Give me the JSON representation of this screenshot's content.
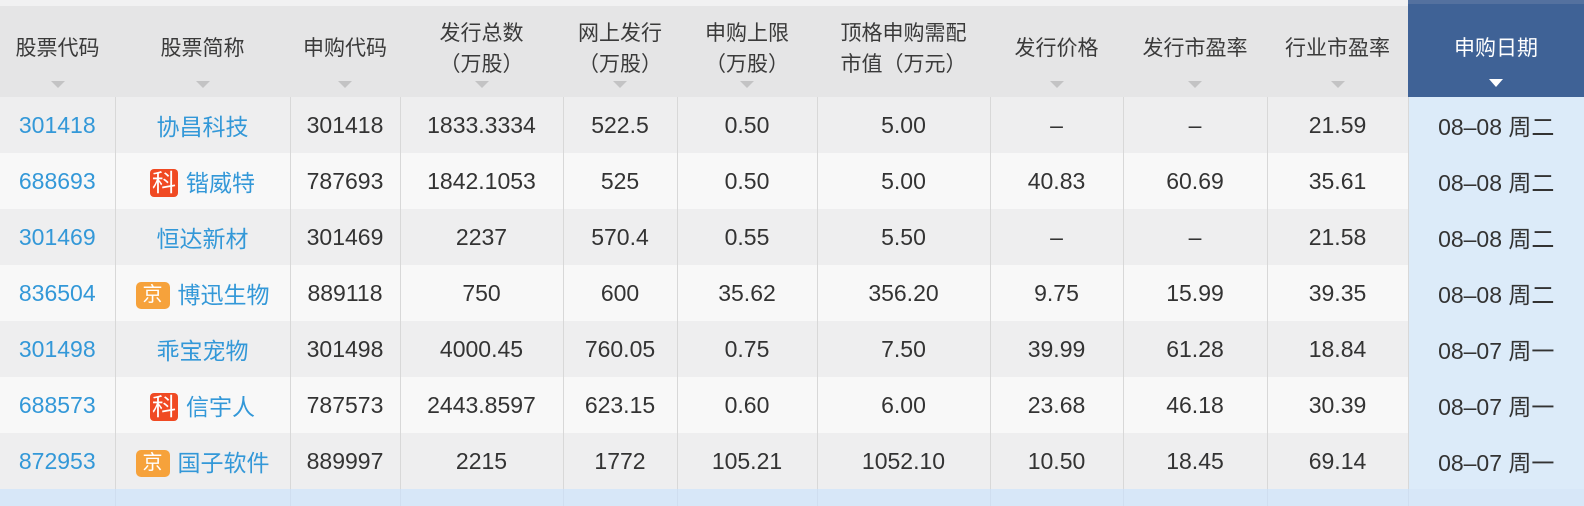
{
  "colors": {
    "link_blue": "#3398d8",
    "header_gray": "#e5e5e6",
    "active_header_blue": "#3f6296",
    "date_column_blue": "#dcebf9",
    "row_odd": "#eeeeef",
    "row_even": "#f8f8f8",
    "partial_row_blue": "#d7e7f8",
    "badge_sci_red": "#f04a23",
    "badge_bj_orange": "#f6a23b"
  },
  "table": {
    "columns": [
      {
        "id": "code",
        "label": "股票代码",
        "label2": "",
        "sortable": true,
        "active": false
      },
      {
        "id": "name",
        "label": "股票简称",
        "label2": "",
        "sortable": true,
        "active": false
      },
      {
        "id": "sub-code",
        "label": "申购代码",
        "label2": "",
        "sortable": true,
        "active": false
      },
      {
        "id": "total-issue",
        "label": "发行总数",
        "label2": "（万股）",
        "sortable": true,
        "active": false
      },
      {
        "id": "online-issue",
        "label": "网上发行",
        "label2": "（万股）",
        "sortable": true,
        "active": false
      },
      {
        "id": "sub-limit",
        "label": "申购上限",
        "label2": "（万股）",
        "sortable": true,
        "active": false
      },
      {
        "id": "max-mktval",
        "label": "顶格申购需配",
        "label2": "市值（万元）",
        "sortable": false,
        "active": false
      },
      {
        "id": "issue-price",
        "label": "发行价格",
        "label2": "",
        "sortable": true,
        "active": false
      },
      {
        "id": "issue-pe",
        "label": "发行市盈率",
        "label2": "",
        "sortable": true,
        "active": false
      },
      {
        "id": "industry-pe",
        "label": "行业市盈率",
        "label2": "",
        "sortable": true,
        "active": false
      },
      {
        "id": "sub-date",
        "label": "申购日期",
        "label2": "",
        "sortable": true,
        "active": true
      }
    ],
    "rows": [
      {
        "code": "301418",
        "badge": "",
        "name": "协昌科技",
        "sub_code": "301418",
        "total_issue": "1833.3334",
        "online_issue": "522.5",
        "sub_limit": "0.50",
        "max_mktval": "5.00",
        "issue_price": "–",
        "issue_pe": "–",
        "industry_pe": "21.59",
        "sub_date": "08–08 周二"
      },
      {
        "code": "688693",
        "badge": "科",
        "name": "锴威特",
        "sub_code": "787693",
        "total_issue": "1842.1053",
        "online_issue": "525",
        "sub_limit": "0.50",
        "max_mktval": "5.00",
        "issue_price": "40.83",
        "issue_pe": "60.69",
        "industry_pe": "35.61",
        "sub_date": "08–08 周二"
      },
      {
        "code": "301469",
        "badge": "",
        "name": "恒达新材",
        "sub_code": "301469",
        "total_issue": "2237",
        "online_issue": "570.4",
        "sub_limit": "0.55",
        "max_mktval": "5.50",
        "issue_price": "–",
        "issue_pe": "–",
        "industry_pe": "21.58",
        "sub_date": "08–08 周二"
      },
      {
        "code": "836504",
        "badge": "京",
        "name": "博迅生物",
        "sub_code": "889118",
        "total_issue": "750",
        "online_issue": "600",
        "sub_limit": "35.62",
        "max_mktval": "356.20",
        "issue_price": "9.75",
        "issue_pe": "15.99",
        "industry_pe": "39.35",
        "sub_date": "08–08 周二"
      },
      {
        "code": "301498",
        "badge": "",
        "name": "乖宝宠物",
        "sub_code": "301498",
        "total_issue": "4000.45",
        "online_issue": "760.05",
        "sub_limit": "0.75",
        "max_mktval": "7.50",
        "issue_price": "39.99",
        "issue_pe": "61.28",
        "industry_pe": "18.84",
        "sub_date": "08–07 周一"
      },
      {
        "code": "688573",
        "badge": "科",
        "name": "信宇人",
        "sub_code": "787573",
        "total_issue": "2443.8597",
        "online_issue": "623.15",
        "sub_limit": "0.60",
        "max_mktval": "6.00",
        "issue_price": "23.68",
        "issue_pe": "46.18",
        "industry_pe": "30.39",
        "sub_date": "08–07 周一"
      },
      {
        "code": "872953",
        "badge": "京",
        "name": "国子软件",
        "sub_code": "889997",
        "total_issue": "2215",
        "online_issue": "1772",
        "sub_limit": "105.21",
        "max_mktval": "1052.10",
        "issue_price": "10.50",
        "issue_pe": "18.45",
        "industry_pe": "69.14",
        "sub_date": "08–07 周一"
      }
    ]
  }
}
